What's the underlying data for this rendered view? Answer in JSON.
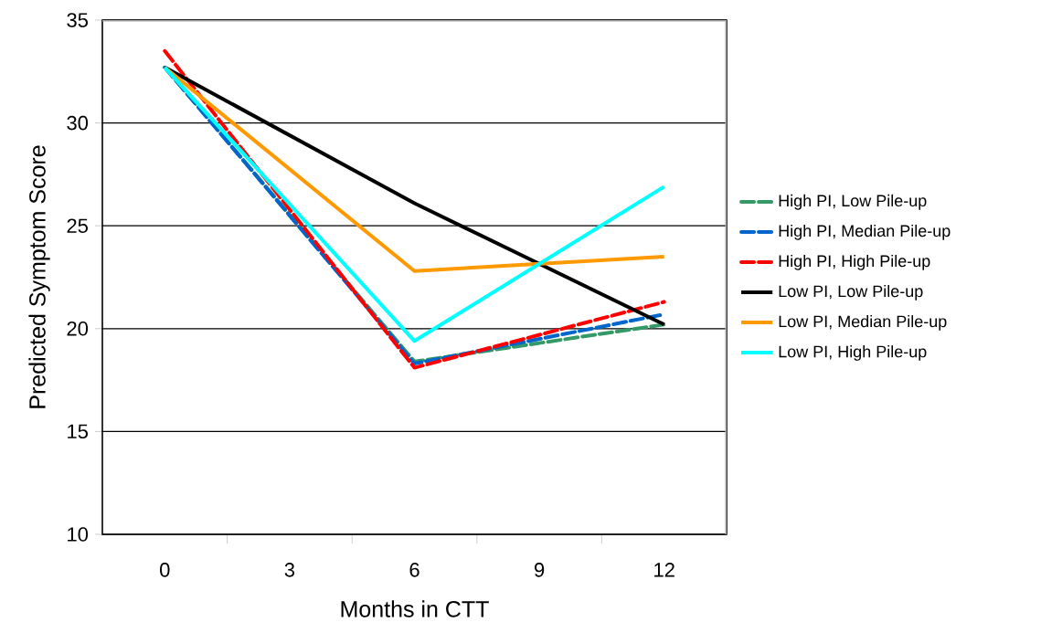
{
  "chart_data": {
    "type": "line",
    "xlabel": "Months in CTT",
    "ylabel": "Predicted Symptom Score",
    "x": [
      0,
      6,
      12
    ],
    "xlim": [
      -1.5,
      13.5
    ],
    "xticks": [
      0,
      3,
      6,
      9,
      12
    ],
    "ylim": [
      10,
      35
    ],
    "yticks": [
      10,
      15,
      20,
      25,
      30,
      35
    ],
    "grid": "y",
    "legend": "right",
    "marker": "none",
    "series": [
      {
        "name": "High PI, Low Pile-up",
        "color": "#339966",
        "line_style": "dashed",
        "values": [
          32.7,
          18.4,
          20.2
        ]
      },
      {
        "name": "High PI, Median Pile-up",
        "color": "#0066cc",
        "line_style": "dashed",
        "values": [
          32.7,
          18.3,
          20.7
        ]
      },
      {
        "name": "High PI, High Pile-up",
        "color": "#ff0000",
        "line_style": "dashed",
        "values": [
          33.5,
          18.1,
          21.3
        ]
      },
      {
        "name": "Low PI, Low Pile-up",
        "color": "#000000",
        "line_style": "solid",
        "values": [
          32.7,
          26.1,
          20.2
        ]
      },
      {
        "name": "Low PI, Median Pile-up",
        "color": "#ff9900",
        "line_style": "solid",
        "values": [
          32.7,
          22.8,
          23.5
        ]
      },
      {
        "name": "Low PI, High Pile-up",
        "color": "#00ffff",
        "line_style": "solid",
        "values": [
          32.7,
          19.4,
          26.9
        ]
      }
    ]
  }
}
